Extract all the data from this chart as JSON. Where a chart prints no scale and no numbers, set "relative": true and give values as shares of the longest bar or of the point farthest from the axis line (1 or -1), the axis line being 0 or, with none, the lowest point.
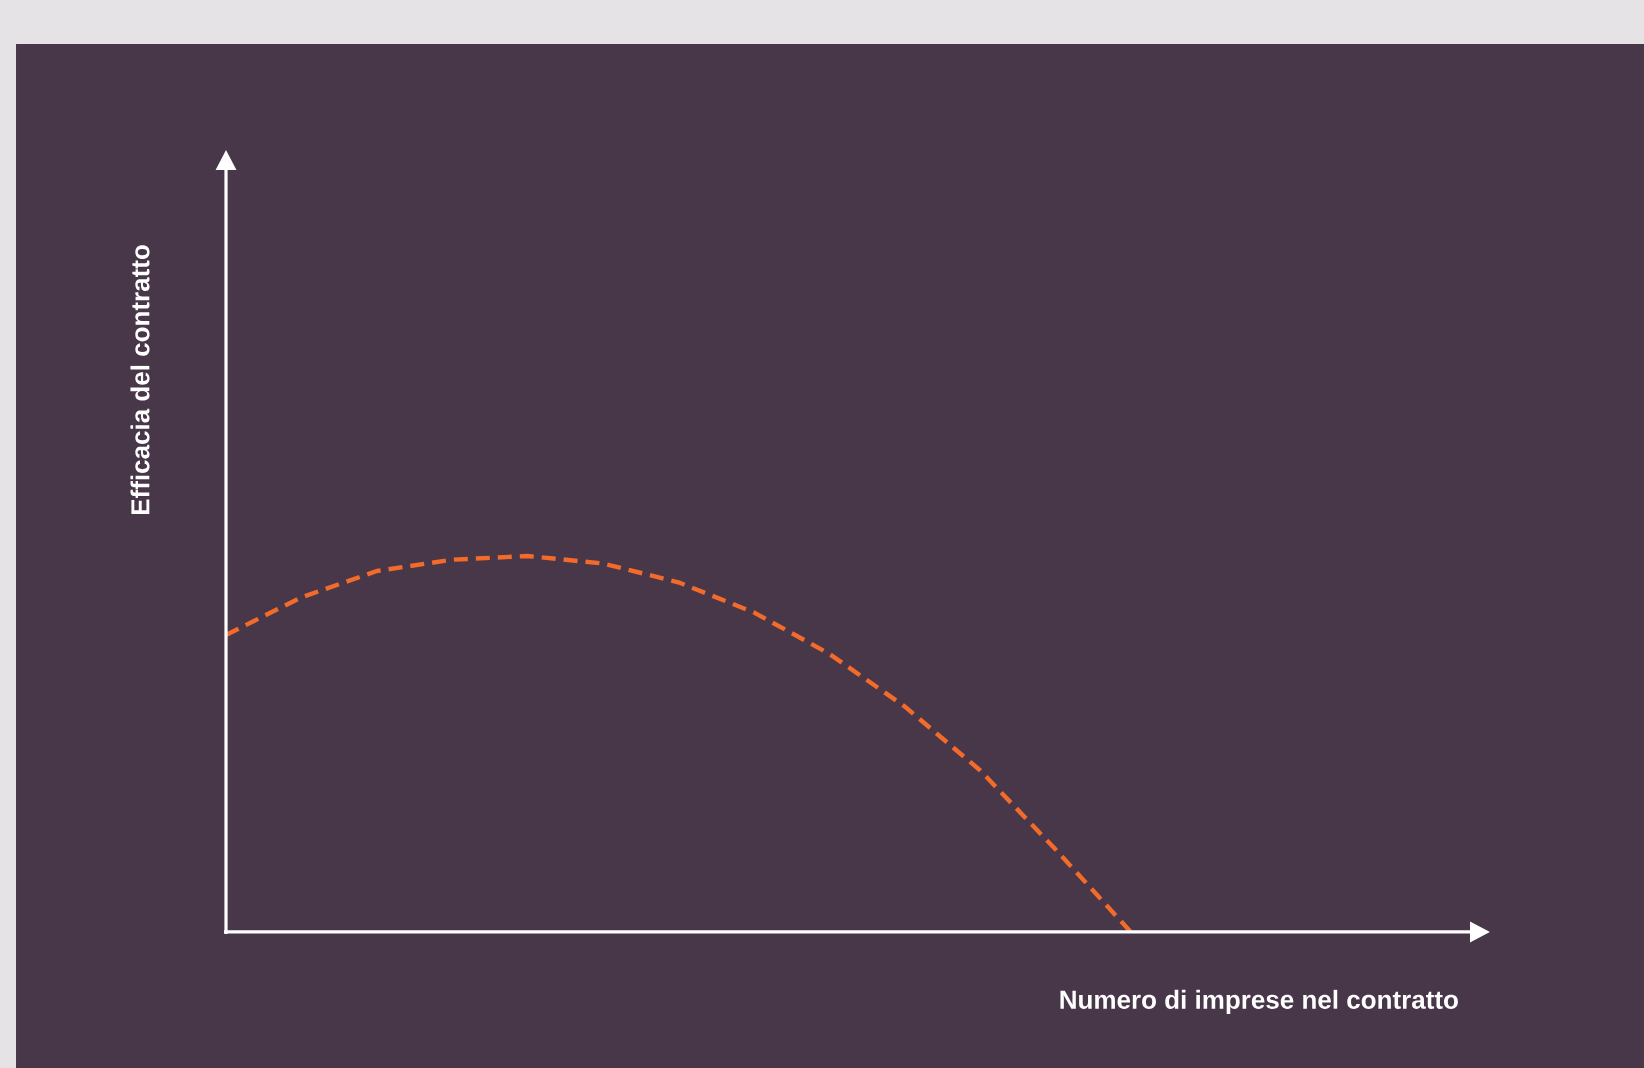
{
  "chart_data": {
    "type": "line",
    "relative": true,
    "xlabel": "Numero di imprese nel contratto",
    "ylabel": "Efficacia del contratto",
    "categories": [
      null,
      null,
      null,
      null,
      null,
      null,
      null,
      null,
      null,
      null,
      null,
      null,
      null
    ],
    "series": [
      {
        "color": "#f26b2a",
        "values": [
          0.79,
          0.89,
          0.96,
          0.99,
          1,
          0.98,
          0.93,
          0.85,
          0.74,
          0.6,
          0.43,
          0.22,
          0
        ]
      }
    ],
    "line_style": "dashed",
    "marker": "none"
  }
}
